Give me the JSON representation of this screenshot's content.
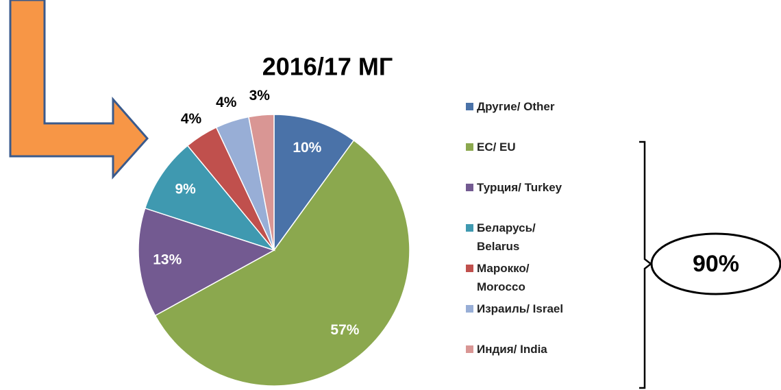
{
  "chart_data": {
    "type": "pie",
    "title": "2016/17 МГ",
    "categories": [
      "Другие/ Other",
      "ЕС/ EU",
      "Турция/ Turkey",
      "Беларусь/ Belarus",
      "Марокко/ Morocco",
      "Израиль/ Israel",
      "Индия/ India"
    ],
    "values": [
      10,
      57,
      13,
      9,
      4,
      4,
      3
    ],
    "value_labels": [
      "10%",
      "57%",
      "13%",
      "9%",
      "4%",
      "4%",
      "3%"
    ],
    "colors": [
      "#4a72a8",
      "#8ba84e",
      "#735a91",
      "#3f99b0",
      "#c0504d",
      "#98aed6",
      "#d99694"
    ],
    "legend": "right",
    "annotation": "90%"
  }
}
